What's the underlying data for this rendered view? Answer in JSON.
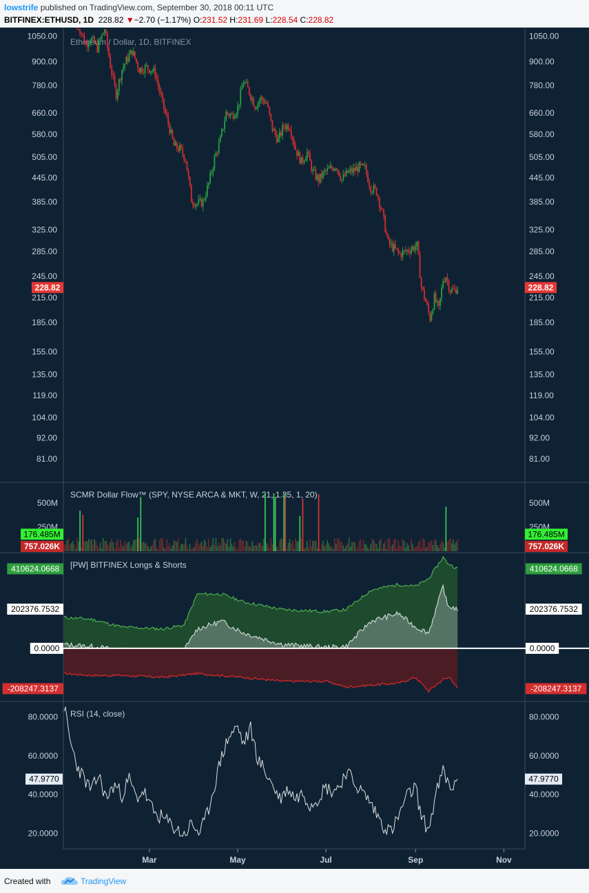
{
  "header": {
    "author": "lowstrife",
    "published_text": "published on TradingView.com, September 30, 2018 00:11 UTC",
    "symbol": "BITFINEX:ETHUSD, 1D",
    "last": "228.82",
    "down_arrow": "▼",
    "change": "−2.70 (−1.17%)",
    "o_label": "O:",
    "o_value": "231.52",
    "h_label": "H:",
    "h_value": "231.69",
    "l_label": "L:",
    "l_value": "228.54",
    "c_label": "C:",
    "c_value": "228.82"
  },
  "footer": {
    "created_with": "Created with",
    "brand": "TradingView"
  },
  "colors": {
    "background": "#0f2234",
    "up": "#26a041",
    "down": "#d32f2f",
    "longs": "#4caf50",
    "shorts": "#c62828",
    "rsi": "#e0e0e0",
    "brand": "#2196f3"
  },
  "chart_data": [
    {
      "type": "candlestick",
      "title": "Ethereum / Dollar, 1D, BITFINEX",
      "scale": "log",
      "ylim": [
        72,
        1080
      ],
      "y_ticks": [
        "1050.00",
        "900.00",
        "780.00",
        "660.00",
        "580.00",
        "505.00",
        "445.00",
        "385.00",
        "325.00",
        "285.00",
        "245.00",
        "215.00",
        "185.00",
        "155.00",
        "135.00",
        "119.00",
        "104.00",
        "92.00",
        "81.00"
      ],
      "last_price": "228.82",
      "x_ticks": [
        "Mar",
        "May",
        "Jul",
        "Sep",
        "Nov"
      ],
      "close_path": [
        [
          "2018-01-10",
          1150
        ],
        [
          "2018-01-16",
          1000
        ],
        [
          "2018-01-19",
          1040
        ],
        [
          "2018-01-24",
          980
        ],
        [
          "2018-01-29",
          1100
        ],
        [
          "2018-02-02",
          880
        ],
        [
          "2018-02-06",
          740
        ],
        [
          "2018-02-10",
          860
        ],
        [
          "2018-02-14",
          920
        ],
        [
          "2018-02-17",
          960
        ],
        [
          "2018-02-22",
          860
        ],
        [
          "2018-02-27",
          870
        ],
        [
          "2018-03-02",
          860
        ],
        [
          "2018-03-05",
          840
        ],
        [
          "2018-03-10",
          700
        ],
        [
          "2018-03-14",
          620
        ],
        [
          "2018-03-18",
          540
        ],
        [
          "2018-03-22",
          530
        ],
        [
          "2018-03-26",
          500
        ],
        [
          "2018-03-30",
          390
        ],
        [
          "2018-04-03",
          380
        ],
        [
          "2018-04-07",
          385
        ],
        [
          "2018-04-11",
          430
        ],
        [
          "2018-04-15",
          500
        ],
        [
          "2018-04-19",
          560
        ],
        [
          "2018-04-23",
          660
        ],
        [
          "2018-04-27",
          650
        ],
        [
          "2018-05-01",
          680
        ],
        [
          "2018-05-05",
          800
        ],
        [
          "2018-05-09",
          750
        ],
        [
          "2018-05-13",
          690
        ],
        [
          "2018-05-17",
          720
        ],
        [
          "2018-05-21",
          700
        ],
        [
          "2018-05-25",
          600
        ],
        [
          "2018-05-29",
          560
        ],
        [
          "2018-06-02",
          610
        ],
        [
          "2018-06-06",
          610
        ],
        [
          "2018-06-10",
          530
        ],
        [
          "2018-06-14",
          490
        ],
        [
          "2018-06-18",
          520
        ],
        [
          "2018-06-22",
          460
        ],
        [
          "2018-06-26",
          440
        ],
        [
          "2018-06-30",
          460
        ],
        [
          "2018-07-04",
          470
        ],
        [
          "2018-07-08",
          480
        ],
        [
          "2018-07-12",
          440
        ],
        [
          "2018-07-16",
          460
        ],
        [
          "2018-07-20",
          465
        ],
        [
          "2018-07-24",
          475
        ],
        [
          "2018-07-28",
          470
        ],
        [
          "2018-08-01",
          420
        ],
        [
          "2018-08-05",
          410
        ],
        [
          "2018-08-09",
          360
        ],
        [
          "2018-08-13",
          300
        ],
        [
          "2018-08-17",
          290
        ],
        [
          "2018-08-21",
          280
        ],
        [
          "2018-08-25",
          285
        ],
        [
          "2018-08-29",
          290
        ],
        [
          "2018-09-02",
          295
        ],
        [
          "2018-09-05",
          230
        ],
        [
          "2018-09-08",
          210
        ],
        [
          "2018-09-11",
          190
        ],
        [
          "2018-09-14",
          215
        ],
        [
          "2018-09-17",
          200
        ],
        [
          "2018-09-20",
          240
        ],
        [
          "2018-09-22",
          245
        ],
        [
          "2018-09-25",
          225
        ],
        [
          "2018-09-28",
          225
        ],
        [
          "2018-09-30",
          228.82
        ]
      ]
    },
    {
      "type": "bar",
      "title": "SCMR Dollar Flow™ (SPY, NYSE ARCA & MKT, W, 21, 1.35, 1, 20)",
      "y_ticks": [
        "500M",
        "250M"
      ],
      "ylim": [
        0,
        700
      ],
      "units": "M",
      "last_up": "176.485M",
      "last_down": "757.026K"
    },
    {
      "type": "area",
      "title": "[PW] BITFINEX Longs & Shorts",
      "ylim": [
        -260000,
        480000
      ],
      "labels": {
        "longs": "410624.0668",
        "mid": "202376.7532",
        "zero": "0.0000",
        "shorts": "-208247.3137"
      },
      "series": [
        {
          "values": [
            [
              "2018-01-01",
              160000
            ],
            [
              "2018-01-20",
              150000
            ],
            [
              "2018-02-10",
              110000
            ],
            [
              "2018-03-10",
              100000
            ],
            [
              "2018-03-25",
              120000
            ],
            [
              "2018-04-03",
              280000
            ],
            [
              "2018-04-20",
              280000
            ],
            [
              "2018-05-05",
              240000
            ],
            [
              "2018-06-01",
              200000
            ],
            [
              "2018-07-01",
              190000
            ],
            [
              "2018-07-15",
              200000
            ],
            [
              "2018-08-01",
              300000
            ],
            [
              "2018-08-20",
              330000
            ],
            [
              "2018-09-01",
              320000
            ],
            [
              "2018-09-10",
              360000
            ],
            [
              "2018-09-20",
              470000
            ],
            [
              "2018-09-23",
              440000
            ],
            [
              "2018-09-30",
              410624
            ]
          ]
        },
        {
          "values": [
            [
              "2018-01-01",
              20000
            ],
            [
              "2018-01-20",
              10000
            ],
            [
              "2018-02-10",
              -10000
            ],
            [
              "2018-03-10",
              -30000
            ],
            [
              "2018-03-25",
              -10000
            ],
            [
              "2018-04-03",
              100000
            ],
            [
              "2018-04-20",
              140000
            ],
            [
              "2018-05-05",
              80000
            ],
            [
              "2018-06-01",
              20000
            ],
            [
              "2018-07-01",
              5000
            ],
            [
              "2018-07-15",
              10000
            ],
            [
              "2018-08-01",
              140000
            ],
            [
              "2018-08-20",
              180000
            ],
            [
              "2018-09-01",
              110000
            ],
            [
              "2018-09-10",
              80000
            ],
            [
              "2018-09-20",
              320000
            ],
            [
              "2018-09-23",
              220000
            ],
            [
              "2018-09-30",
              202377
            ]
          ]
        },
        {
          "values": [
            [
              "2018-01-01",
              -130000
            ],
            [
              "2018-01-20",
              -140000
            ],
            [
              "2018-02-10",
              -140000
            ],
            [
              "2018-03-10",
              -150000
            ],
            [
              "2018-04-03",
              -130000
            ],
            [
              "2018-05-05",
              -150000
            ],
            [
              "2018-06-01",
              -170000
            ],
            [
              "2018-07-01",
              -170000
            ],
            [
              "2018-07-15",
              -200000
            ],
            [
              "2018-08-01",
              -190000
            ],
            [
              "2018-08-20",
              -180000
            ],
            [
              "2018-09-01",
              -150000
            ],
            [
              "2018-09-10",
              -220000
            ],
            [
              "2018-09-20",
              -160000
            ],
            [
              "2018-09-25",
              -150000
            ],
            [
              "2018-09-30",
              -208247
            ]
          ]
        }
      ]
    },
    {
      "type": "line",
      "title": "RSI (14, close)",
      "ylim": [
        12,
        88
      ],
      "y_ticks": [
        "80.0000",
        "60.0000",
        "40.0000",
        "20.0000"
      ],
      "last_value": "47.9770",
      "values": [
        [
          "2018-01-01",
          86
        ],
        [
          "2018-01-05",
          68
        ],
        [
          "2018-01-10",
          55
        ],
        [
          "2018-01-15",
          48
        ],
        [
          "2018-01-20",
          42
        ],
        [
          "2018-01-25",
          50
        ],
        [
          "2018-01-30",
          38
        ],
        [
          "2018-02-05",
          45
        ],
        [
          "2018-02-10",
          40
        ],
        [
          "2018-02-15",
          48
        ],
        [
          "2018-02-20",
          38
        ],
        [
          "2018-02-25",
          42
        ],
        [
          "2018-03-01",
          35
        ],
        [
          "2018-03-05",
          30
        ],
        [
          "2018-03-10",
          28
        ],
        [
          "2018-03-15",
          25
        ],
        [
          "2018-03-20",
          22
        ],
        [
          "2018-03-25",
          19
        ],
        [
          "2018-03-30",
          25
        ],
        [
          "2018-04-05",
          20
        ],
        [
          "2018-04-10",
          30
        ],
        [
          "2018-04-15",
          45
        ],
        [
          "2018-04-20",
          60
        ],
        [
          "2018-04-25",
          70
        ],
        [
          "2018-05-01",
          75
        ],
        [
          "2018-05-05",
          66
        ],
        [
          "2018-05-10",
          74
        ],
        [
          "2018-05-15",
          58
        ],
        [
          "2018-05-20",
          52
        ],
        [
          "2018-05-25",
          45
        ],
        [
          "2018-05-30",
          38
        ],
        [
          "2018-06-05",
          43
        ],
        [
          "2018-06-10",
          38
        ],
        [
          "2018-06-15",
          41
        ],
        [
          "2018-06-20",
          35
        ],
        [
          "2018-06-25",
          38
        ],
        [
          "2018-07-01",
          44
        ],
        [
          "2018-07-05",
          42
        ],
        [
          "2018-07-10",
          44
        ],
        [
          "2018-07-15",
          52
        ],
        [
          "2018-07-20",
          47
        ],
        [
          "2018-07-25",
          42
        ],
        [
          "2018-07-30",
          38
        ],
        [
          "2018-08-05",
          30
        ],
        [
          "2018-08-10",
          24
        ],
        [
          "2018-08-15",
          21
        ],
        [
          "2018-08-20",
          28
        ],
        [
          "2018-08-25",
          38
        ],
        [
          "2018-09-01",
          44
        ],
        [
          "2018-09-05",
          28
        ],
        [
          "2018-09-10",
          22
        ],
        [
          "2018-09-15",
          40
        ],
        [
          "2018-09-20",
          52
        ],
        [
          "2018-09-25",
          43
        ],
        [
          "2018-09-30",
          47.98
        ]
      ]
    }
  ]
}
